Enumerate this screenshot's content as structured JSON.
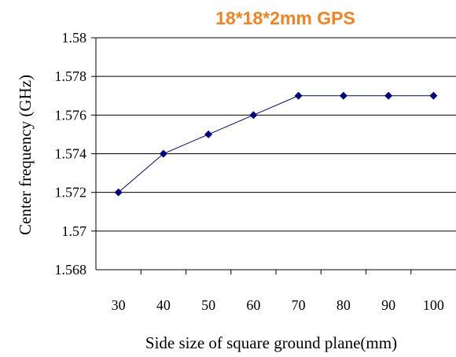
{
  "chart_data": {
    "type": "line",
    "title": "18*18*2mm GPS",
    "title_color": "#f5821f",
    "xlabel": "Side size of square ground plane(mm)",
    "ylabel": "Center frequency (GHz)",
    "categories": [
      "30",
      "40",
      "50",
      "60",
      "70",
      "80",
      "90",
      "100"
    ],
    "series": [
      {
        "values": [
          1.572,
          1.574,
          1.575,
          1.576,
          1.577,
          1.577,
          1.577,
          1.577
        ],
        "color": "#000080",
        "marker": "diamond"
      }
    ],
    "ylim": [
      1.568,
      1.58
    ],
    "yticks": [
      "1.568",
      "1.57",
      "1.572",
      "1.574",
      "1.576",
      "1.578",
      "1.58"
    ],
    "grid": true
  }
}
